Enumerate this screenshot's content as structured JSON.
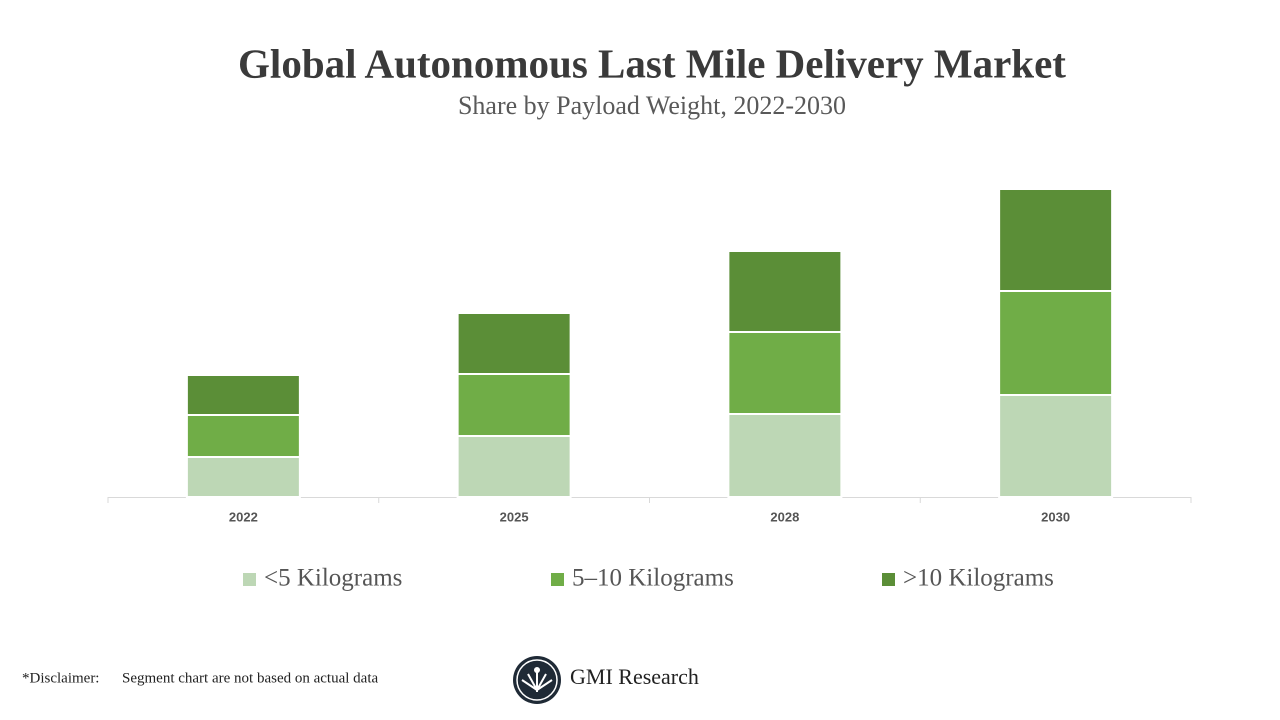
{
  "chart_data": {
    "type": "stacked_bar",
    "title": "Global Autonomous Last Mile Delivery Market",
    "subtitle": "Share by Payload Weight, 2022-2030",
    "categories": [
      "2022",
      "2025",
      "2028",
      "2030"
    ],
    "series": [
      {
        "name": "<5 Kilograms",
        "color": "#bdd7b5",
        "values": [
          40,
          61,
          83,
          102
        ]
      },
      {
        "name": "5–10 Kilograms",
        "color": "#70ad47",
        "values": [
          42,
          62,
          82,
          104
        ]
      },
      {
        "name": ">10 Kilograms",
        "color": "#5b8e37",
        "values": [
          40,
          61,
          81,
          102
        ]
      }
    ],
    "ylim": [
      0,
      350
    ]
  },
  "footer": {
    "disclaimer_label": "*Disclaimer:",
    "disclaimer_text": "Segment chart are not based on actual data",
    "brand": "GMI Research"
  }
}
